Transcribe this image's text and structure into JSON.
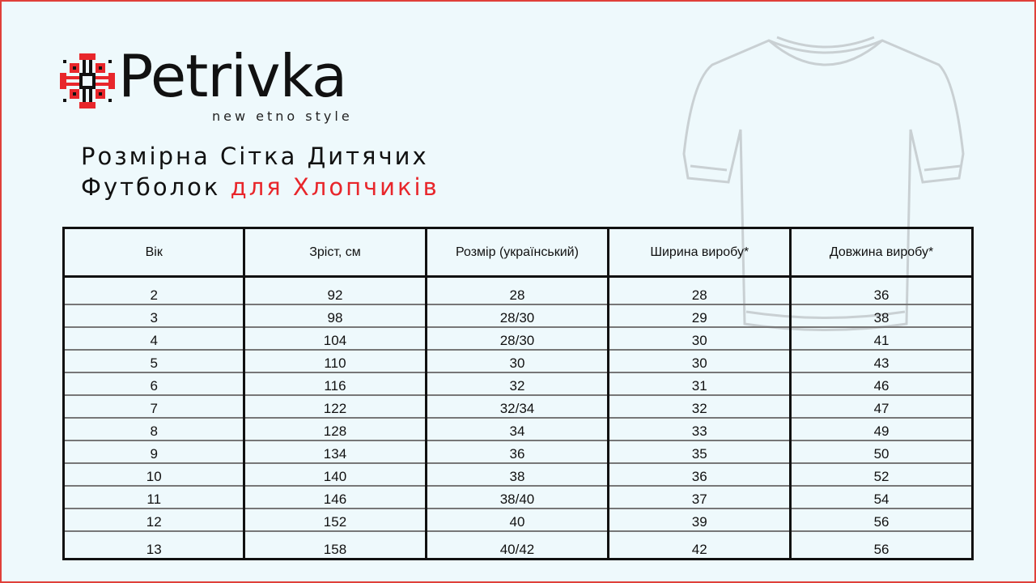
{
  "brand": {
    "name": "Petrivka",
    "tagline": "new etno style",
    "colors": {
      "accent": "#e8262b",
      "text": "#111111",
      "background": "#eef9fc"
    }
  },
  "title": {
    "line1": "Розмірна Сітка Дитячих",
    "line2_prefix": "Футболок",
    "line2_highlight": "для Хлопчиків"
  },
  "table": {
    "headers": [
      "Вік",
      "Зріст, см",
      "Розмір (український)",
      "Ширина виробу*",
      "Довжина виробу*"
    ],
    "rows": [
      [
        "2",
        "92",
        "28",
        "28",
        "36"
      ],
      [
        "3",
        "98",
        "28/30",
        "29",
        "38"
      ],
      [
        "4",
        "104",
        "28/30",
        "30",
        "41"
      ],
      [
        "5",
        "110",
        "30",
        "30",
        "43"
      ],
      [
        "6",
        "116",
        "32",
        "31",
        "46"
      ],
      [
        "7",
        "122",
        "32/34",
        "32",
        "47"
      ],
      [
        "8",
        "128",
        "34",
        "33",
        "49"
      ],
      [
        "9",
        "134",
        "36",
        "35",
        "50"
      ],
      [
        "10",
        "140",
        "38",
        "36",
        "52"
      ],
      [
        "11",
        "146",
        "38/40",
        "37",
        "54"
      ],
      [
        "12",
        "152",
        "40",
        "39",
        "56"
      ],
      [
        "13",
        "158",
        "40/42",
        "42",
        "56"
      ]
    ]
  },
  "decor": {
    "shirt_icon": "tshirt-outline",
    "logo_icon": "embroidery-ornament"
  }
}
